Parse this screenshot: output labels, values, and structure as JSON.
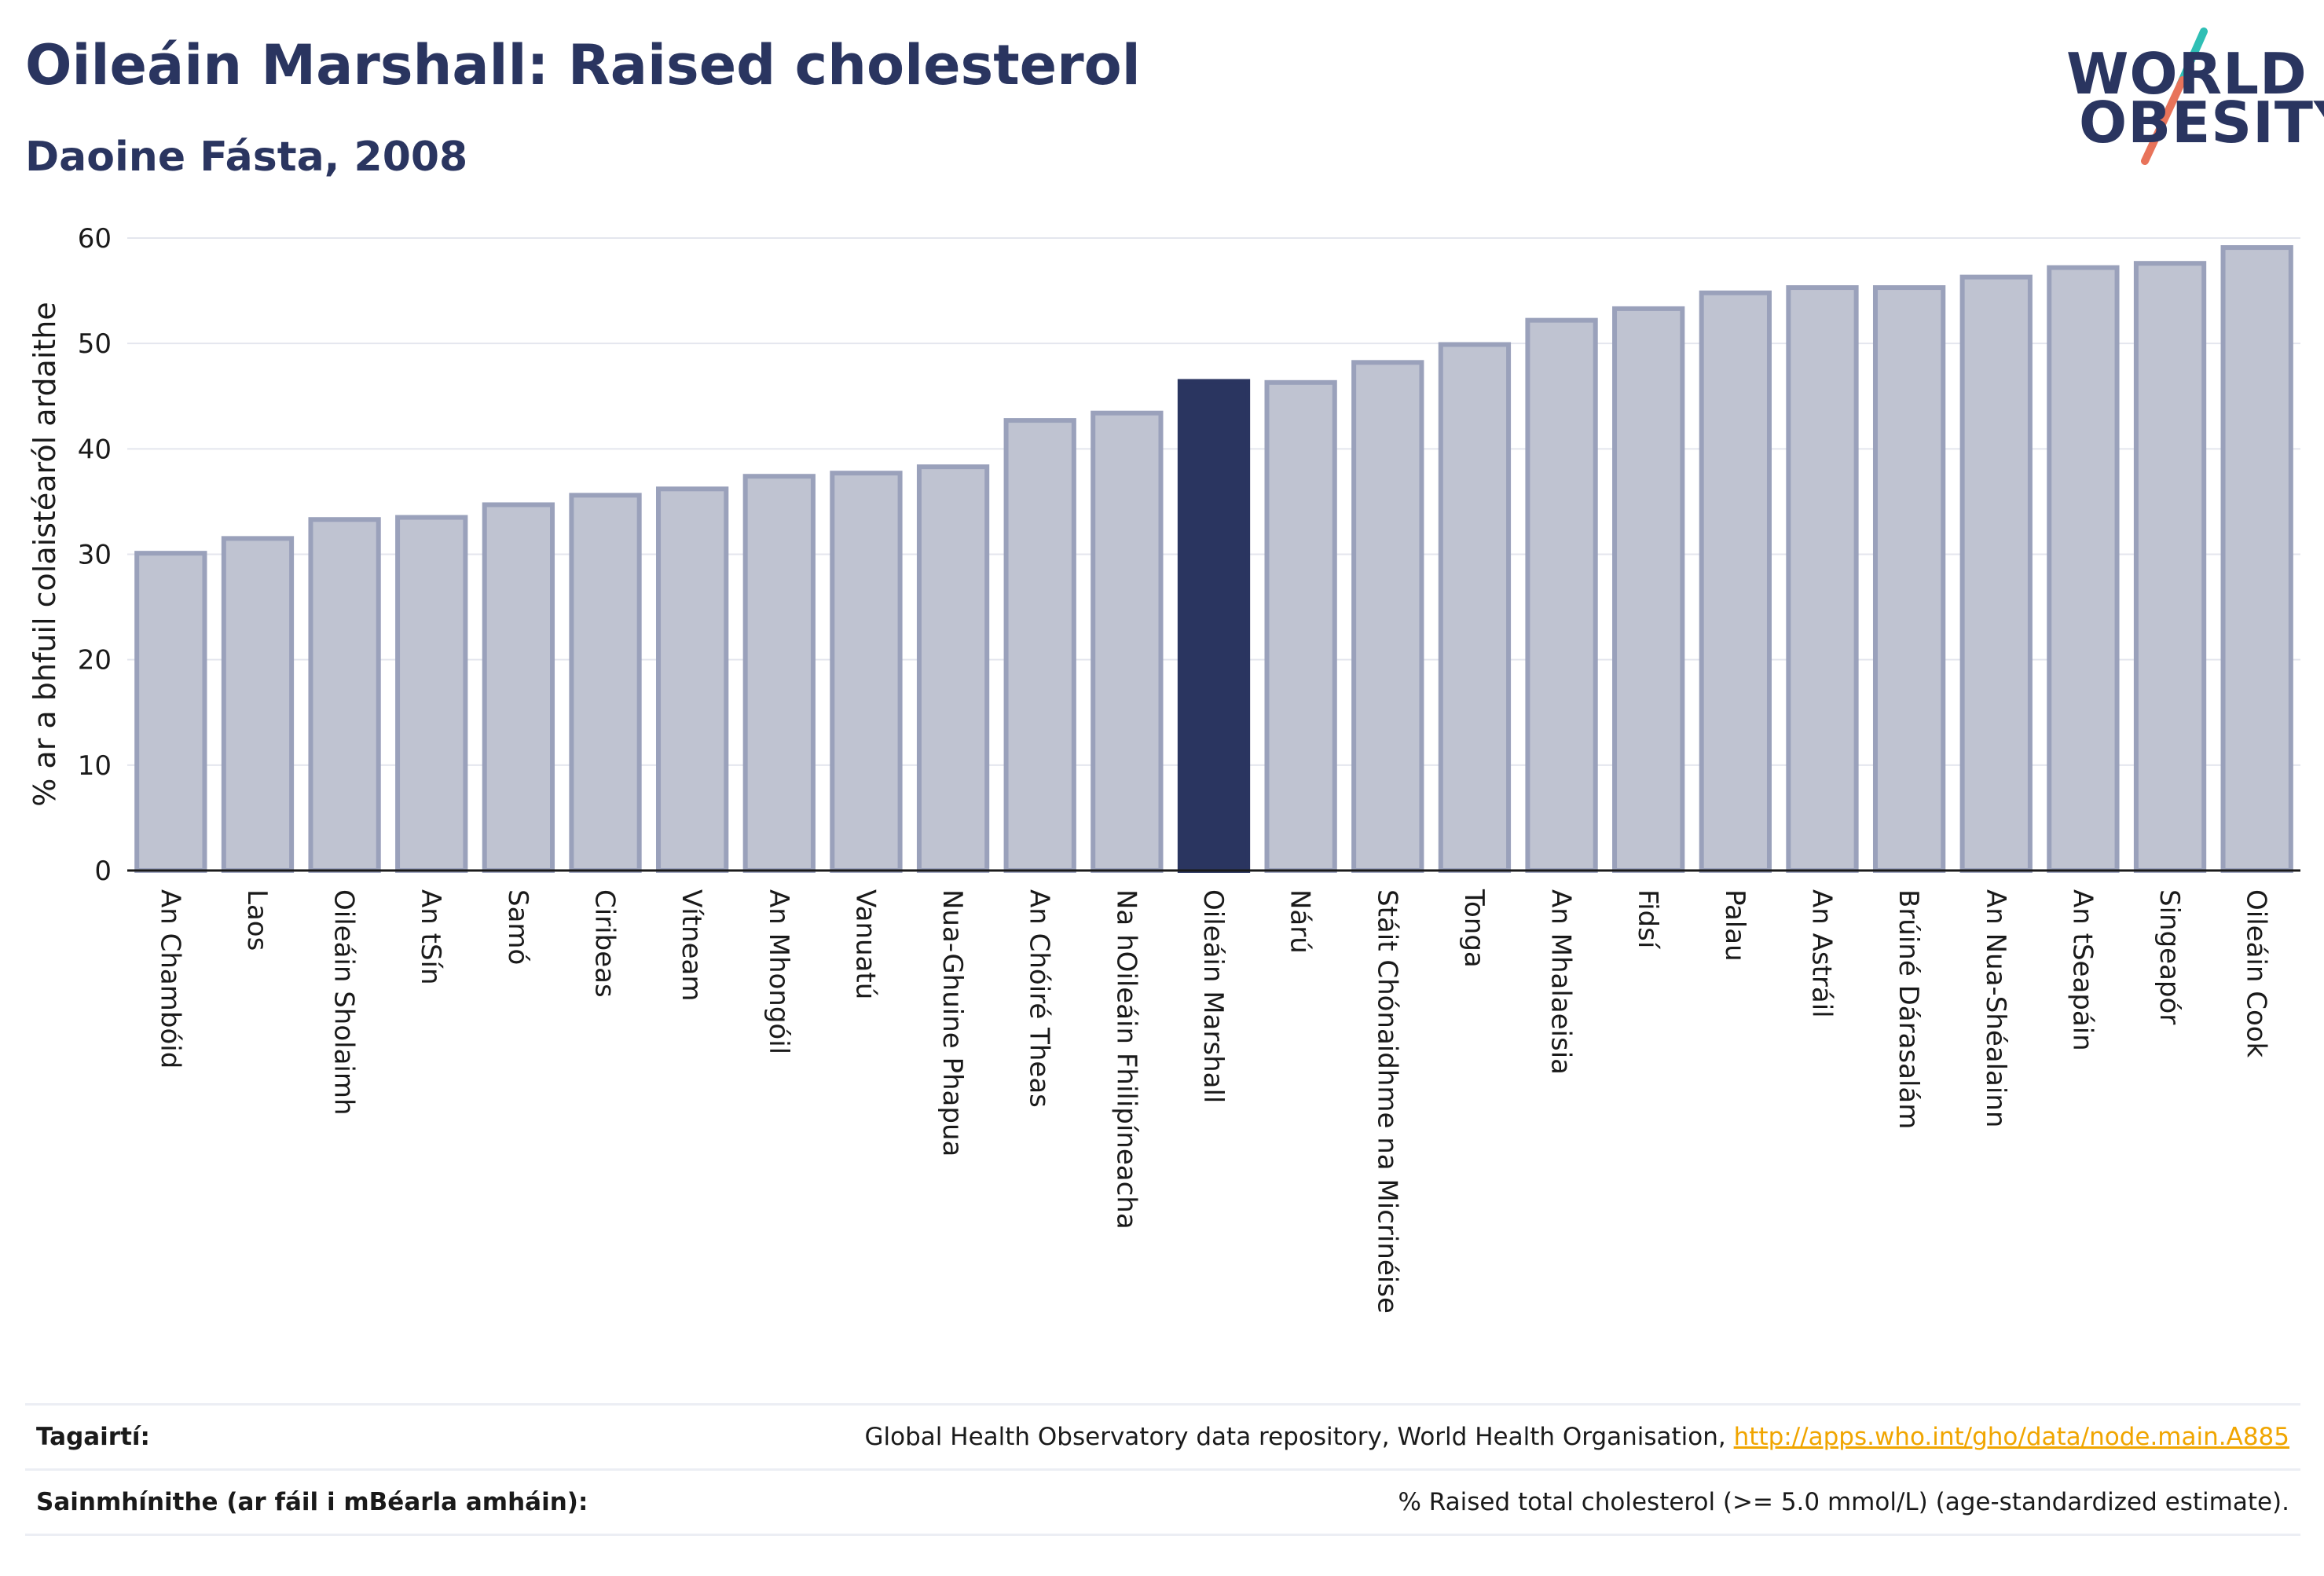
{
  "header": {
    "title": "Oileáin Marshall: Raised cholesterol",
    "subtitle": "Daoine Fásta, 2008"
  },
  "logo": {
    "line1": "WORLD",
    "line2": "OBESITY",
    "slash_colors": [
      "#2fbfb5",
      "#e8735a"
    ]
  },
  "chart_data": {
    "type": "bar",
    "title": "Oileáin Marshall: Raised cholesterol",
    "subtitle": "Daoine Fásta, 2008",
    "ylabel": "% ar a bhfuil colaistéaról ardaithe",
    "xlabel": "",
    "ylim": [
      0,
      60
    ],
    "yticks": [
      0,
      10,
      20,
      30,
      40,
      50,
      60
    ],
    "grid": true,
    "highlight": "Oileáin Marshall",
    "colors": {
      "bar": "#bfc3d1",
      "bar_edge": "#9aa1bb",
      "highlight": "#2a3560"
    },
    "categories": [
      "An Chambóid",
      "Laos",
      "Oileáin Sholaimh",
      "An tSín",
      "Samó",
      "Ciribeas",
      "Vítneam",
      "An Mhongóil",
      "Vanuatú",
      "Nua-Ghuine Phapua",
      "An Chóiré Theas",
      "Na hOileáin Fhilipíneacha",
      "Oileáin Marshall",
      "Nárú",
      "Stáit Chónaidhme na Micrinéise",
      "Tonga",
      "An Mhalaeisia",
      "Fidsí",
      "Palau",
      "An Astráil",
      "Brúiné Dárasalám",
      "An Nua-Shéalainn",
      "An tSeapáin",
      "Singeapór",
      "Oileáin Cook"
    ],
    "values": [
      30.1,
      31.5,
      33.3,
      33.5,
      34.7,
      35.6,
      36.2,
      37.4,
      37.7,
      38.3,
      42.7,
      43.4,
      46.4,
      46.3,
      48.2,
      49.9,
      52.2,
      53.3,
      54.8,
      55.3,
      55.3,
      56.3,
      57.2,
      57.6,
      59.1
    ]
  },
  "references": [
    {
      "label": "Tagairtí:",
      "text": "Global Health Observatory data repository, World Health Organisation, ",
      "link": "http://apps.who.int/gho/data/node.main.A885"
    },
    {
      "label": "Sainmhínithe (ar fáil i mBéarla amháin):",
      "text": "% Raised total cholesterol (>= 5.0 mmol/L) (age-standardized estimate).",
      "link": ""
    }
  ]
}
